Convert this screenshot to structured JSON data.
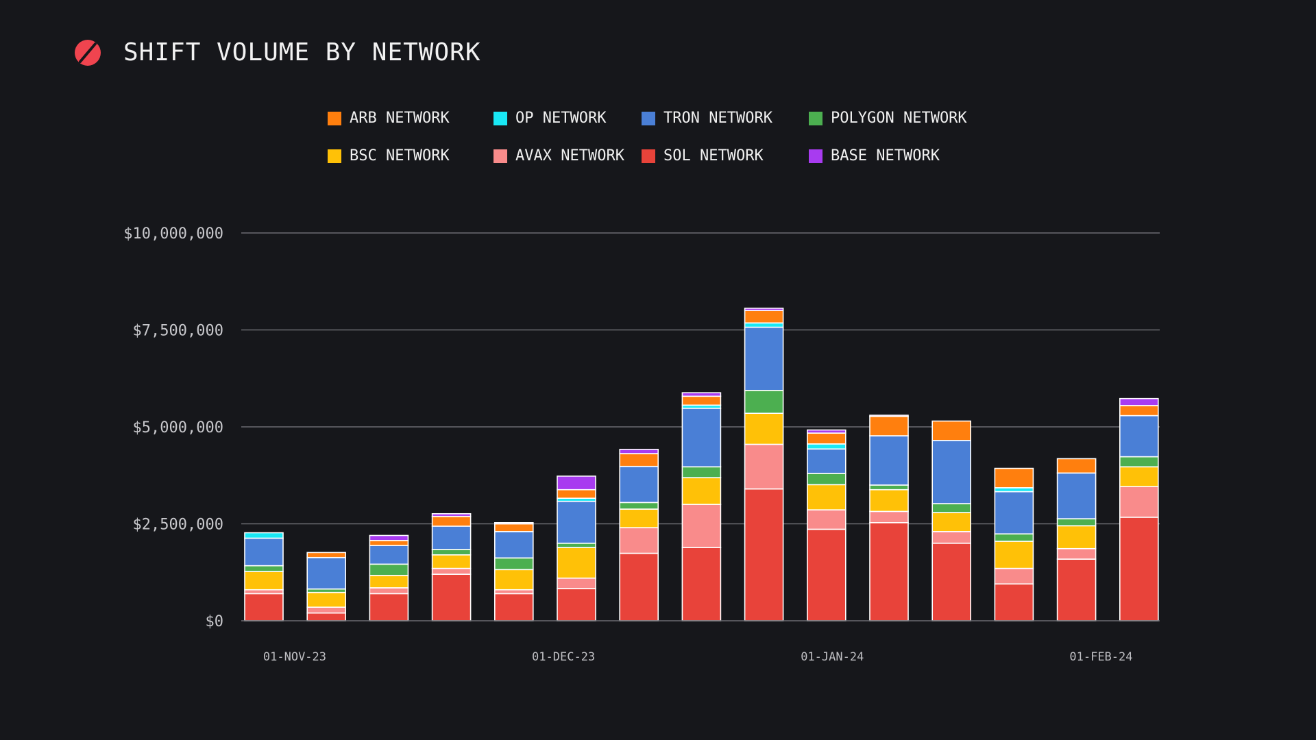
{
  "header": {
    "title": "SHIFT VOLUME BY NETWORK"
  },
  "colors": {
    "background": "#16171b",
    "logo": "#f0444f",
    "grid": "#6b6c72"
  },
  "chart_data": {
    "type": "bar",
    "stacked": true,
    "title": "SHIFT VOLUME BY NETWORK",
    "xlabel": "",
    "ylabel": "",
    "ylim": [
      0,
      10000000
    ],
    "yticks": [
      {
        "value": 0,
        "label": "$0"
      },
      {
        "value": 2500000,
        "label": "$2,500,000"
      },
      {
        "value": 5000000,
        "label": "$5,000,000"
      },
      {
        "value": 7500000,
        "label": "$7,500,000"
      },
      {
        "value": 10000000,
        "label": "$10,000,000"
      }
    ],
    "xticks": [
      {
        "index": 0.8,
        "label": "01-NOV-23"
      },
      {
        "index": 5.1,
        "label": "01-DEC-23"
      },
      {
        "index": 9.4,
        "label": "01-JAN-24"
      },
      {
        "index": 13.7,
        "label": "01-FEB-24"
      }
    ],
    "categories": [
      "2023-10-30",
      "2023-11-06",
      "2023-11-13",
      "2023-11-20",
      "2023-11-27",
      "2023-12-04",
      "2023-12-11",
      "2023-12-18",
      "2023-12-25",
      "2024-01-01",
      "2024-01-08",
      "2024-01-15",
      "2024-01-22",
      "2024-01-29",
      "2024-02-05"
    ],
    "legend": [
      {
        "name": "ARB NETWORK",
        "color": "#ff7f0e"
      },
      {
        "name": "OP NETWORK",
        "color": "#19e8f5"
      },
      {
        "name": "TRON NETWORK",
        "color": "#4a7fd6"
      },
      {
        "name": "POLYGON NETWORK",
        "color": "#4caf50"
      },
      {
        "name": "BSC NETWORK",
        "color": "#ffc107"
      },
      {
        "name": "AVAX NETWORK",
        "color": "#f98b8b"
      },
      {
        "name": "SOL NETWORK",
        "color": "#e8433a"
      },
      {
        "name": "BASE NETWORK",
        "color": "#a83bf0"
      }
    ],
    "series": [
      {
        "name": "SOL NETWORK",
        "color": "#e8433a",
        "values": [
          700000,
          200000,
          700000,
          1200000,
          700000,
          830000,
          1740000,
          1890000,
          3400000,
          2360000,
          2530000,
          2000000,
          950000,
          1590000,
          2670000
        ]
      },
      {
        "name": "AVAX NETWORK",
        "color": "#f98b8b",
        "values": [
          100000,
          150000,
          150000,
          150000,
          100000,
          270000,
          660000,
          1110000,
          1150000,
          500000,
          290000,
          300000,
          400000,
          270000,
          790000
        ]
      },
      {
        "name": "BSC NETWORK",
        "color": "#ffc107",
        "values": [
          470000,
          380000,
          320000,
          350000,
          520000,
          790000,
          480000,
          690000,
          800000,
          650000,
          560000,
          490000,
          700000,
          590000,
          510000
        ]
      },
      {
        "name": "POLYGON NETWORK",
        "color": "#4caf50",
        "values": [
          150000,
          90000,
          290000,
          140000,
          300000,
          110000,
          170000,
          280000,
          590000,
          290000,
          120000,
          230000,
          190000,
          180000,
          260000
        ]
      },
      {
        "name": "TRON NETWORK",
        "color": "#4a7fd6",
        "values": [
          710000,
          810000,
          480000,
          600000,
          680000,
          1080000,
          930000,
          1510000,
          1630000,
          630000,
          1270000,
          1630000,
          1090000,
          1180000,
          1060000
        ]
      },
      {
        "name": "OP NETWORK",
        "color": "#19e8f5",
        "values": [
          140000,
          0,
          0,
          0,
          0,
          80000,
          0,
          80000,
          110000,
          130000,
          0,
          0,
          100000,
          0,
          0
        ]
      },
      {
        "name": "ARB NETWORK",
        "color": "#ff7f0e",
        "values": [
          0,
          130000,
          130000,
          250000,
          200000,
          220000,
          330000,
          230000,
          320000,
          280000,
          500000,
          500000,
          500000,
          370000,
          260000
        ]
      },
      {
        "name": "BASE NETWORK",
        "color": "#a83bf0",
        "values": [
          0,
          0,
          130000,
          70000,
          30000,
          350000,
          110000,
          90000,
          60000,
          80000,
          30000,
          0,
          0,
          0,
          180000
        ]
      }
    ]
  }
}
